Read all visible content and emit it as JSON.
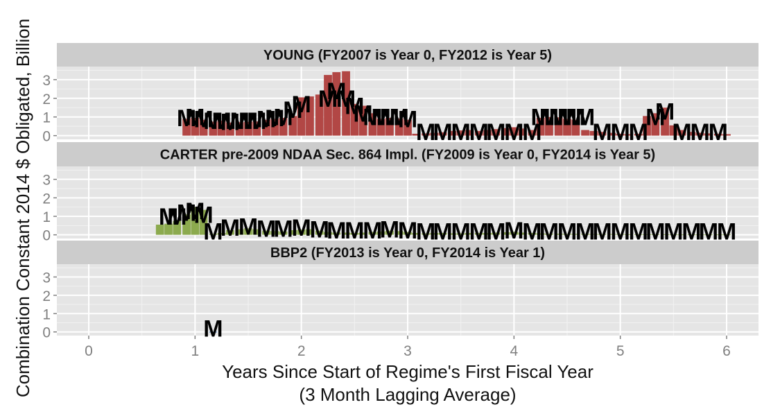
{
  "chart_data": {
    "type": "bar",
    "xlabel": "Years Since Start of Regime's First Fiscal Year",
    "xlabel_sub": "(3 Month Lagging Average)",
    "ylabel": "Combination Constant 2014 $ Obligated, Billion",
    "xlim": [
      -0.3,
      6.3
    ],
    "ylim": [
      -0.2,
      3.7
    ],
    "x_ticks": [
      0,
      1,
      2,
      3,
      4,
      5,
      6
    ],
    "y_ticks": [
      0,
      1,
      2,
      3
    ],
    "grid": true,
    "colors": {
      "panel_bg": "#e5e5e5",
      "grid_major": "#ffffff",
      "grid_minor": "#f2f2f2",
      "strip_bg": "#cccccc"
    },
    "panels": [
      {
        "title": "YOUNG (FY2007 is Year 0, FY2012 is Year 5)",
        "fill": "#b24745",
        "label_glyph": "M",
        "x": [
          0.92,
          1.0,
          1.08,
          1.17,
          1.25,
          1.33,
          1.42,
          1.5,
          1.58,
          1.67,
          1.75,
          1.83,
          1.92,
          2.0,
          2.08,
          2.17,
          2.25,
          2.33,
          2.42,
          2.5,
          2.58,
          2.67,
          2.75,
          2.83,
          2.92,
          3.0,
          3.08,
          3.17,
          3.25,
          3.33,
          3.42,
          3.5,
          3.58,
          3.67,
          3.75,
          3.83,
          3.92,
          4.0,
          4.08,
          4.17,
          4.25,
          4.33,
          4.42,
          4.5,
          4.58,
          4.67,
          4.75,
          4.83,
          4.92,
          5.0,
          5.08,
          5.17,
          5.25,
          5.33,
          5.42,
          5.5,
          5.58,
          5.67,
          5.75,
          5.83,
          5.92,
          6.0
        ],
        "values": [
          0.9,
          0.95,
          0.85,
          0.75,
          0.8,
          0.7,
          0.72,
          0.74,
          0.76,
          0.85,
          0.9,
          0.95,
          1.05,
          2.05,
          2.1,
          2.2,
          3.25,
          3.4,
          3.45,
          1.7,
          1.6,
          1.2,
          0.9,
          0.95,
          0.92,
          0.85,
          0.1,
          0.12,
          0.15,
          0.18,
          0.25,
          0.28,
          0.3,
          0.25,
          0.3,
          0.35,
          0.4,
          0.45,
          0.38,
          0.3,
          0.95,
          1.0,
          0.98,
          0.9,
          0.85,
          0.3,
          0.25,
          0.2,
          0.15,
          0.1,
          0.08,
          0.1,
          1.05,
          1.2,
          1.5,
          0.55,
          0.3,
          0.2,
          0.15,
          0.12,
          0.1,
          0.08
        ],
        "labels": [
          {
            "x": 0.92,
            "y": 0.95,
            "glyph": "M"
          },
          {
            "x": 1.0,
            "y": 1.0,
            "glyph": "M"
          },
          {
            "x": 1.08,
            "y": 0.9,
            "glyph": "M"
          },
          {
            "x": 1.17,
            "y": 0.8,
            "glyph": "M"
          },
          {
            "x": 1.25,
            "y": 0.8,
            "glyph": "M"
          },
          {
            "x": 1.33,
            "y": 0.75,
            "glyph": "M"
          },
          {
            "x": 1.42,
            "y": 0.8,
            "glyph": "M"
          },
          {
            "x": 1.5,
            "y": 0.8,
            "glyph": "M"
          },
          {
            "x": 1.58,
            "y": 0.8,
            "glyph": "M"
          },
          {
            "x": 1.67,
            "y": 0.9,
            "glyph": "M"
          },
          {
            "x": 1.75,
            "y": 0.95,
            "glyph": "M"
          },
          {
            "x": 1.83,
            "y": 1.0,
            "glyph": "M"
          },
          {
            "x": 1.92,
            "y": 1.4,
            "glyph": "M"
          },
          {
            "x": 2.0,
            "y": 1.7,
            "glyph": "M"
          },
          {
            "x": 2.25,
            "y": 2.0,
            "glyph": "M"
          },
          {
            "x": 2.33,
            "y": 2.4,
            "glyph": "M"
          },
          {
            "x": 2.42,
            "y": 2.0,
            "glyph": "M"
          },
          {
            "x": 2.5,
            "y": 1.6,
            "glyph": "M"
          },
          {
            "x": 2.58,
            "y": 1.2,
            "glyph": "M"
          },
          {
            "x": 2.67,
            "y": 1.0,
            "glyph": "M"
          },
          {
            "x": 2.75,
            "y": 1.0,
            "glyph": "M"
          },
          {
            "x": 2.83,
            "y": 1.0,
            "glyph": "M"
          },
          {
            "x": 2.92,
            "y": 1.0,
            "glyph": "M"
          },
          {
            "x": 3.0,
            "y": 0.9,
            "glyph": "M"
          },
          {
            "x": 3.17,
            "y": 0.2,
            "glyph": "M"
          },
          {
            "x": 3.33,
            "y": 0.2,
            "glyph": "M"
          },
          {
            "x": 3.5,
            "y": 0.2,
            "glyph": "M"
          },
          {
            "x": 3.67,
            "y": 0.2,
            "glyph": "M"
          },
          {
            "x": 3.83,
            "y": 0.2,
            "glyph": "M"
          },
          {
            "x": 4.0,
            "y": 0.2,
            "glyph": "M"
          },
          {
            "x": 4.17,
            "y": 0.2,
            "glyph": "M"
          },
          {
            "x": 4.25,
            "y": 1.0,
            "glyph": "M"
          },
          {
            "x": 4.33,
            "y": 1.0,
            "glyph": "M"
          },
          {
            "x": 4.42,
            "y": 1.0,
            "glyph": "M"
          },
          {
            "x": 4.5,
            "y": 1.0,
            "glyph": "M"
          },
          {
            "x": 4.58,
            "y": 1.0,
            "glyph": "M"
          },
          {
            "x": 4.67,
            "y": 1.0,
            "glyph": "M"
          },
          {
            "x": 4.83,
            "y": 0.2,
            "glyph": "M"
          },
          {
            "x": 5.0,
            "y": 0.2,
            "glyph": "M"
          },
          {
            "x": 5.17,
            "y": 0.2,
            "glyph": "M"
          },
          {
            "x": 5.33,
            "y": 1.0,
            "glyph": "M"
          },
          {
            "x": 5.42,
            "y": 1.3,
            "glyph": "M"
          },
          {
            "x": 5.58,
            "y": 0.2,
            "glyph": "M"
          },
          {
            "x": 5.75,
            "y": 0.2,
            "glyph": "M"
          },
          {
            "x": 5.92,
            "y": 0.2,
            "glyph": "M"
          }
        ]
      },
      {
        "title": "CARTER pre-2009 NDAA Sec. 864 Impl. (FY2009 is Year 0, FY2014 is Year 5)",
        "fill": "#8caa4e",
        "label_glyph": "M",
        "x": [
          0.67,
          0.75,
          0.83,
          0.92,
          1.0,
          1.08,
          1.17,
          1.25,
          1.33,
          1.42,
          1.5,
          1.58,
          1.67,
          1.75,
          1.83,
          1.92,
          2.0,
          2.08,
          2.17,
          2.25,
          2.33,
          2.42,
          2.5,
          2.58,
          2.67,
          2.75,
          2.83,
          2.92,
          3.0,
          3.08,
          3.17,
          3.25,
          3.33,
          3.42,
          3.5,
          3.58,
          3.67,
          3.75,
          3.83,
          3.92,
          4.0,
          4.08,
          4.17,
          4.25,
          4.33,
          4.42,
          4.5,
          4.58,
          4.67,
          4.75,
          4.83,
          4.92,
          5.0,
          5.08,
          5.17,
          5.25,
          5.33,
          5.42,
          5.5,
          5.58,
          5.67,
          5.75,
          5.83,
          5.92,
          6.0
        ],
        "values": [
          0.55,
          0.6,
          0.75,
          1.1,
          1.5,
          1.35,
          0.05,
          0.1,
          0.25,
          0.3,
          0.35,
          0.3,
          0.22,
          0.2,
          0.18,
          0.25,
          0.28,
          0.3,
          0.22,
          0.15,
          0.12,
          0.12,
          0.1,
          0.12,
          0.15,
          0.18,
          0.22,
          0.2,
          0.15,
          0.1,
          0.08,
          0.1,
          0.1,
          0.08,
          0.08,
          0.1,
          0.1,
          0.1,
          0.12,
          0.14,
          0.16,
          0.12,
          0.1,
          0.08,
          0.06,
          0.06,
          0.05,
          0.05,
          0.05,
          0.04,
          0.04,
          0.04,
          0.04,
          0.03,
          0.03,
          0.03,
          0.03,
          0.03,
          0.02,
          0.02,
          0.02,
          0.02,
          0.02,
          0.02,
          0.02
        ],
        "labels": [
          {
            "x": 0.75,
            "y": 1.0,
            "glyph": "M"
          },
          {
            "x": 0.83,
            "y": 1.0,
            "glyph": "M"
          },
          {
            "x": 0.92,
            "y": 1.2,
            "glyph": "M"
          },
          {
            "x": 1.0,
            "y": 1.3,
            "glyph": "M"
          },
          {
            "x": 1.08,
            "y": 1.1,
            "glyph": "M"
          },
          {
            "x": 1.17,
            "y": 0.2,
            "glyph": "M"
          },
          {
            "x": 1.33,
            "y": 0.4,
            "glyph": "M"
          },
          {
            "x": 1.5,
            "y": 0.45,
            "glyph": "M"
          },
          {
            "x": 1.67,
            "y": 0.35,
            "glyph": "M"
          },
          {
            "x": 1.83,
            "y": 0.35,
            "glyph": "M"
          },
          {
            "x": 2.0,
            "y": 0.4,
            "glyph": "M"
          },
          {
            "x": 2.17,
            "y": 0.3,
            "glyph": "M"
          },
          {
            "x": 2.33,
            "y": 0.25,
            "glyph": "M"
          },
          {
            "x": 2.5,
            "y": 0.25,
            "glyph": "M"
          },
          {
            "x": 2.67,
            "y": 0.25,
            "glyph": "M"
          },
          {
            "x": 2.83,
            "y": 0.3,
            "glyph": "M"
          },
          {
            "x": 3.0,
            "y": 0.25,
            "glyph": "M"
          },
          {
            "x": 3.17,
            "y": 0.2,
            "glyph": "M"
          },
          {
            "x": 3.33,
            "y": 0.2,
            "glyph": "M"
          },
          {
            "x": 3.5,
            "y": 0.2,
            "glyph": "M"
          },
          {
            "x": 3.67,
            "y": 0.2,
            "glyph": "M"
          },
          {
            "x": 3.83,
            "y": 0.2,
            "glyph": "M"
          },
          {
            "x": 4.0,
            "y": 0.25,
            "glyph": "M"
          },
          {
            "x": 4.17,
            "y": 0.2,
            "glyph": "M"
          },
          {
            "x": 4.33,
            "y": 0.2,
            "glyph": "M"
          },
          {
            "x": 4.5,
            "y": 0.2,
            "glyph": "M"
          },
          {
            "x": 4.67,
            "y": 0.2,
            "glyph": "M"
          },
          {
            "x": 4.83,
            "y": 0.2,
            "glyph": "M"
          },
          {
            "x": 5.0,
            "y": 0.2,
            "glyph": "M"
          },
          {
            "x": 5.17,
            "y": 0.2,
            "glyph": "M"
          },
          {
            "x": 5.33,
            "y": 0.2,
            "glyph": "M"
          },
          {
            "x": 5.5,
            "y": 0.2,
            "glyph": "M"
          },
          {
            "x": 5.67,
            "y": 0.2,
            "glyph": "M"
          },
          {
            "x": 5.83,
            "y": 0.2,
            "glyph": "M"
          },
          {
            "x": 6.0,
            "y": 0.2,
            "glyph": "M"
          }
        ]
      },
      {
        "title": "BBP2 (FY2013 is Year 0, FY2014 is Year 1)",
        "fill": "#3b6fb6",
        "label_glyph": "M",
        "x": [
          1.17
        ],
        "values": [
          0.01
        ],
        "labels": [
          {
            "x": 1.17,
            "y": 0.2,
            "glyph": "M"
          }
        ]
      }
    ]
  }
}
